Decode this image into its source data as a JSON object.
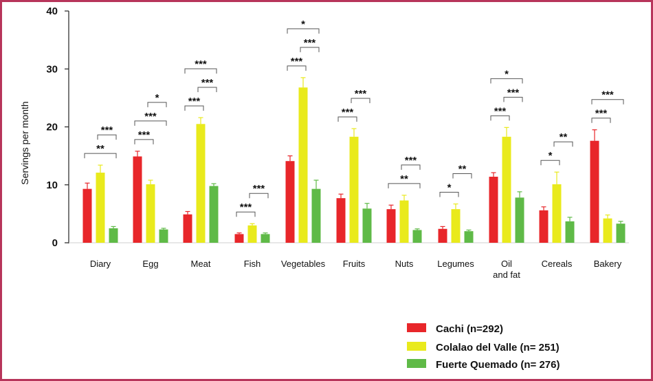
{
  "chart_data": {
    "type": "bar",
    "ylabel": "Servings per month",
    "ylim": [
      0,
      40
    ],
    "yticks": [
      "0",
      "10",
      "20",
      "30",
      "40"
    ],
    "categories": [
      "Diary",
      "Egg",
      "Meat",
      "Fish",
      "Vegetables",
      "Fruits",
      "Nuts",
      "Legumes",
      "Oil\nand fat",
      "Cereals",
      "Bakery"
    ],
    "series": [
      {
        "name": "Cachi (n=292)",
        "color": "#e8262a",
        "values": [
          9.3,
          14.9,
          4.9,
          1.5,
          14.1,
          7.7,
          5.8,
          2.4,
          11.4,
          5.6,
          17.6
        ],
        "errors": [
          1.0,
          0.9,
          0.5,
          0.2,
          0.9,
          0.7,
          0.7,
          0.4,
          0.7,
          0.6,
          1.9
        ]
      },
      {
        "name": "Colalao del Valle (n= 251)",
        "color": "#e9ea1c",
        "values": [
          12.1,
          10.1,
          20.5,
          3.0,
          26.8,
          18.3,
          7.3,
          5.8,
          18.3,
          10.1,
          4.2
        ],
        "errors": [
          1.3,
          0.7,
          1.1,
          0.3,
          1.7,
          1.4,
          0.9,
          0.9,
          1.6,
          2.1,
          0.6
        ]
      },
      {
        "name": "Fuerte Quemado (n= 276)",
        "color": "#5fba47",
        "values": [
          2.5,
          2.3,
          9.8,
          1.5,
          9.3,
          5.9,
          2.2,
          2.0,
          7.8,
          3.7,
          3.3
        ],
        "errors": [
          0.3,
          0.2,
          0.4,
          0.2,
          1.5,
          0.9,
          0.2,
          0.2,
          1.0,
          0.7,
          0.4
        ]
      }
    ],
    "significance": [
      {
        "cat": 0,
        "pairs": [
          [
            "0-2",
            "**"
          ],
          [
            "1-2",
            "***"
          ]
        ]
      },
      {
        "cat": 1,
        "pairs": [
          [
            "0-1",
            "***"
          ],
          [
            "0-2",
            "***"
          ],
          [
            "1-2",
            "*"
          ]
        ]
      },
      {
        "cat": 2,
        "pairs": [
          [
            "0-1",
            "***"
          ],
          [
            "1-2",
            "***"
          ],
          [
            "0-2",
            "***"
          ]
        ]
      },
      {
        "cat": 3,
        "pairs": [
          [
            "0-1",
            "***"
          ],
          [
            "1-2",
            "***"
          ]
        ]
      },
      {
        "cat": 4,
        "pairs": [
          [
            "0-1",
            "***"
          ],
          [
            "1-2",
            "***"
          ],
          [
            "0-2",
            "*"
          ]
        ]
      },
      {
        "cat": 5,
        "pairs": [
          [
            "0-1",
            "***"
          ],
          [
            "1-2",
            "***"
          ]
        ]
      },
      {
        "cat": 6,
        "pairs": [
          [
            "0-2",
            "**"
          ],
          [
            "1-2",
            "***"
          ]
        ]
      },
      {
        "cat": 7,
        "pairs": [
          [
            "0-1",
            "*"
          ],
          [
            "1-2",
            "**"
          ]
        ]
      },
      {
        "cat": 8,
        "pairs": [
          [
            "0-1",
            "***"
          ],
          [
            "1-2",
            "***"
          ],
          [
            "0-2",
            "*"
          ]
        ]
      },
      {
        "cat": 9,
        "pairs": [
          [
            "0-1",
            "*"
          ],
          [
            "1-2",
            "**"
          ]
        ]
      },
      {
        "cat": 10,
        "pairs": [
          [
            "0-1",
            "***"
          ],
          [
            "0-2",
            "***"
          ]
        ]
      }
    ],
    "legend_position": "bottom-right",
    "grid": false
  }
}
